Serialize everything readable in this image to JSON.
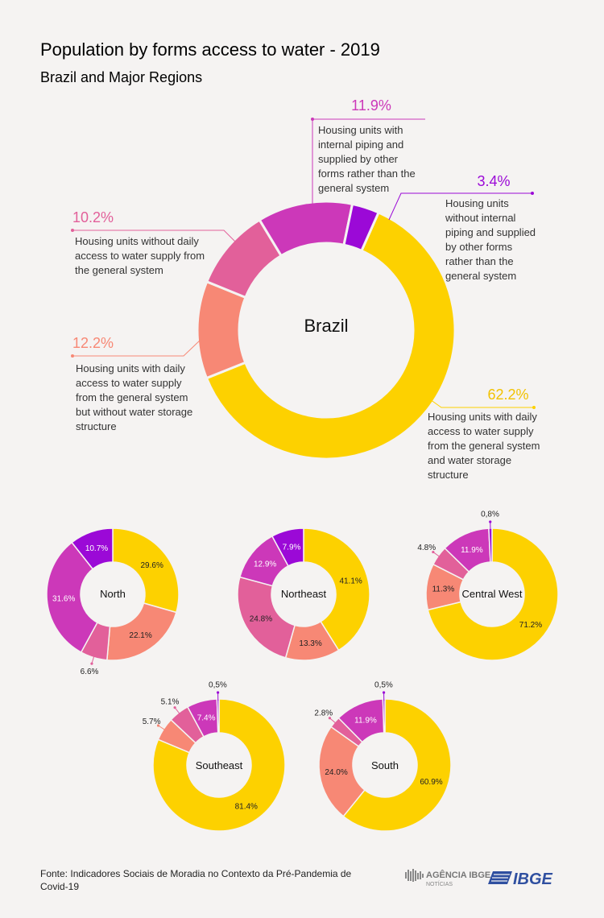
{
  "header": {
    "title": "Population by forms access to water - 2019",
    "subtitle": "Brazil and Major Regions"
  },
  "colors": {
    "yellow": "#fdd100",
    "salmon": "#f78875",
    "pink": "#e2609a",
    "magenta": "#cc38b9",
    "purple": "#9b09d7"
  },
  "chart_data": [
    {
      "type": "pie",
      "title": "Brazil",
      "categories": [
        "Housing units with daily access to water supply from the general system and water storage structure",
        "Housing units with daily access to water supply from the general system but without water storage structure",
        "Housing units without daily access to water supply from the general system",
        "Housing units with internal piping and supplied by other forms rather than the general system",
        "Housing units without internal piping and supplied by other forms rather than the general system"
      ],
      "values": [
        62.2,
        12.2,
        10.2,
        11.9,
        3.4
      ],
      "labels": [
        "62.2%",
        "12.2%",
        "10.2%",
        "11.9%",
        "3.4%"
      ]
    },
    {
      "type": "pie",
      "title": "North",
      "values": [
        29.6,
        22.1,
        6.6,
        31.6,
        10.7
      ],
      "labels": [
        "29.6%",
        "22.1%",
        "6.6%",
        "31.6%",
        "10.7%"
      ]
    },
    {
      "type": "pie",
      "title": "Northeast",
      "values": [
        41.1,
        13.3,
        24.8,
        12.9,
        7.9
      ],
      "labels": [
        "41.1%",
        "13.3%",
        "24.8%",
        "12.9%",
        "7.9%"
      ]
    },
    {
      "type": "pie",
      "title": "Central West",
      "values": [
        71.2,
        11.3,
        4.8,
        11.9,
        0.8
      ],
      "labels": [
        "71.2%",
        "11.3%",
        "4.8%",
        "11.9%",
        "0,8%"
      ]
    },
    {
      "type": "pie",
      "title": "Southeast",
      "values": [
        81.4,
        5.7,
        5.1,
        7.4,
        0.5
      ],
      "labels": [
        "81.4%",
        "5.7%",
        "5.1%",
        "7.4%",
        "0,5%"
      ]
    },
    {
      "type": "pie",
      "title": "South",
      "values": [
        60.9,
        24.0,
        2.8,
        11.9,
        0.5
      ],
      "labels": [
        "60.9%",
        "24.0%",
        "2.8%",
        "11.9%",
        "0,5%"
      ]
    }
  ],
  "annotations": {
    "storage": {
      "pct": "62.2%",
      "lines": [
        "Housing units with daily",
        "access to water supply",
        "from the general system",
        "and water storage",
        "structure"
      ]
    },
    "no_storage": {
      "pct": "12.2%",
      "lines": [
        "Housing units with daily",
        "access to water supply",
        "from the general system",
        "but without water storage",
        "structure"
      ]
    },
    "no_daily": {
      "pct": "10.2%",
      "lines": [
        "Housing units without daily",
        "access to water supply from",
        "the general system"
      ]
    },
    "piping_other": {
      "pct": "11.9%",
      "lines": [
        "Housing units with",
        "internal piping and",
        "supplied by other",
        "forms rather than the",
        "general system"
      ]
    },
    "no_piping_other": {
      "pct": "3.4%",
      "lines": [
        "Housing units",
        "without internal",
        "piping and supplied",
        "by other forms",
        "rather than the",
        "general system"
      ]
    }
  },
  "footer": {
    "source_lines": [
      "Fonte: Indicadores Sociais de Moradia no Contexto da Pré-Pandemia de",
      "Covid-19"
    ],
    "logo_agencia": "AGÊNCIA IBGE",
    "logo_noticias": "NOTÍCIAS",
    "logo_ibge": "IBGE"
  }
}
